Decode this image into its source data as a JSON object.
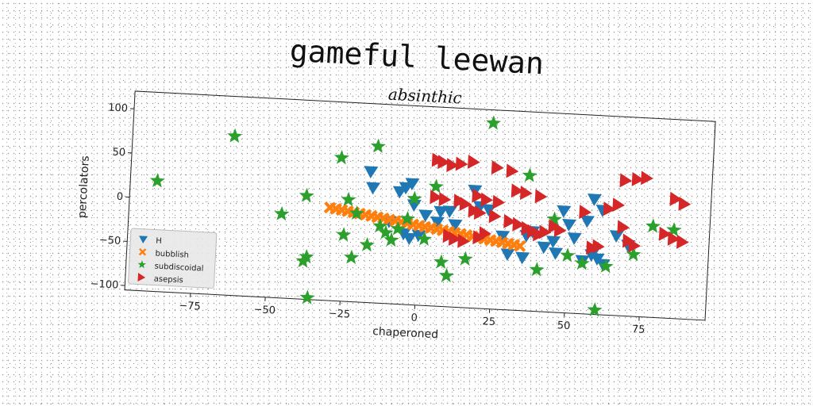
{
  "chart_data": {
    "type": "scatter",
    "suptitle": "gameful leewan",
    "title": "absinthic",
    "xlabel": "chaperoned",
    "ylabel": "percolators",
    "xlim": [
      -97,
      97
    ],
    "ylim": [
      -105,
      120
    ],
    "xticks": [
      -75,
      -50,
      -25,
      0,
      25,
      50,
      75
    ],
    "yticks": [
      -100,
      -50,
      0,
      50,
      100
    ],
    "xtick_labels": [
      "−75",
      "−50",
      "−25",
      "0",
      "25",
      "50",
      "75"
    ],
    "ytick_labels": [
      "−100",
      "−50",
      "0",
      "50",
      "100"
    ],
    "grid": false,
    "legend_position": "lower-left",
    "series": [
      {
        "name": "H",
        "marker": "triangle-down",
        "color": "#1f77b4",
        "points": [
          [
            -17,
            43
          ],
          [
            -16,
            25
          ],
          [
            -7,
            22
          ],
          [
            -5,
            27
          ],
          [
            -3,
            32
          ],
          [
            2,
            -3
          ],
          [
            7,
            2
          ],
          [
            10,
            3
          ],
          [
            -2,
            8
          ],
          [
            -10,
            -12
          ],
          [
            -5,
            -25
          ],
          [
            -3,
            -30
          ],
          [
            0,
            -26
          ],
          [
            6,
            -10
          ],
          [
            12,
            -12
          ],
          [
            18,
            28
          ],
          [
            20,
            10
          ],
          [
            23,
            7
          ],
          [
            28,
            -22
          ],
          [
            30,
            -42
          ],
          [
            35,
            -45
          ],
          [
            36,
            -20
          ],
          [
            38,
            -15
          ],
          [
            42,
            -32
          ],
          [
            45,
            -25
          ],
          [
            46,
            -38
          ],
          [
            48,
            10
          ],
          [
            50,
            -5
          ],
          [
            52,
            -20
          ],
          [
            55,
            -45
          ],
          [
            58,
            -38
          ],
          [
            60,
            -42
          ],
          [
            62,
            -48
          ],
          [
            56,
            0
          ],
          [
            58,
            25
          ],
          [
            61,
            13
          ],
          [
            66,
            -15
          ],
          [
            70,
            -25
          ]
        ]
      },
      {
        "name": "bubblish",
        "marker": "x",
        "color": "#ff7f0e",
        "points": [
          [
            -30,
            0
          ],
          [
            -28,
            -1
          ],
          [
            -26,
            -2
          ],
          [
            -24,
            -3
          ],
          [
            -22,
            -4
          ],
          [
            -20,
            -5
          ],
          [
            -18,
            -6
          ],
          [
            -16,
            -7
          ],
          [
            -14,
            -8
          ],
          [
            -12,
            -9
          ],
          [
            -10,
            -10
          ],
          [
            -8,
            -11
          ],
          [
            -6,
            -12
          ],
          [
            -4,
            -13
          ],
          [
            -2,
            -14
          ],
          [
            0,
            -15
          ],
          [
            2,
            -16
          ],
          [
            4,
            -17
          ],
          [
            6,
            -18
          ],
          [
            8,
            -19
          ],
          [
            10,
            -20
          ],
          [
            12,
            -21
          ],
          [
            14,
            -22
          ],
          [
            16,
            -23
          ],
          [
            18,
            -24
          ],
          [
            20,
            -25
          ],
          [
            22,
            -26
          ],
          [
            24,
            -27
          ],
          [
            26,
            -28
          ],
          [
            28,
            -29
          ],
          [
            30,
            -30
          ],
          [
            32,
            -31
          ],
          [
            34,
            -32
          ]
        ]
      },
      {
        "name": "subdiscoidal",
        "marker": "star",
        "color": "#2ca02c",
        "points": [
          [
            -88,
            20
          ],
          [
            -63,
            75
          ],
          [
            -46,
            -10
          ],
          [
            -38,
            12
          ],
          [
            -37,
            -57
          ],
          [
            -38,
            -62
          ],
          [
            -36,
            -103
          ],
          [
            -27,
            57
          ],
          [
            -24,
            10
          ],
          [
            -21,
            -5
          ],
          [
            -25,
            -30
          ],
          [
            -22,
            -55
          ],
          [
            -17,
            -40
          ],
          [
            -15,
            72
          ],
          [
            -13,
            -18
          ],
          [
            -11,
            -25
          ],
          [
            -9,
            -33
          ],
          [
            -7,
            -20
          ],
          [
            -4,
            -8
          ],
          [
            -2,
            15
          ],
          [
            2,
            -30
          ],
          [
            5,
            30
          ],
          [
            8,
            -55
          ],
          [
            10,
            -70
          ],
          [
            16,
            -50
          ],
          [
            23,
            105
          ],
          [
            36,
            48
          ],
          [
            40,
            -58
          ],
          [
            45,
            0
          ],
          [
            50,
            -40
          ],
          [
            55,
            -48
          ],
          [
            60,
            -100
          ],
          [
            63,
            -50
          ],
          [
            72,
            -35
          ],
          [
            78,
            -2
          ],
          [
            85,
            -5
          ]
        ]
      },
      {
        "name": "asepsis",
        "marker": "triangle-right",
        "color": "#d62728",
        "points": [
          [
            5,
            60
          ],
          [
            7,
            58
          ],
          [
            10,
            55
          ],
          [
            13,
            57
          ],
          [
            17,
            60
          ],
          [
            25,
            55
          ],
          [
            30,
            52
          ],
          [
            5,
            18
          ],
          [
            8,
            16
          ],
          [
            13,
            15
          ],
          [
            15,
            12
          ],
          [
            19,
            22
          ],
          [
            22,
            18
          ],
          [
            26,
            16
          ],
          [
            32,
            30
          ],
          [
            35,
            28
          ],
          [
            40,
            25
          ],
          [
            18,
            5
          ],
          [
            20,
            3
          ],
          [
            25,
            0
          ],
          [
            30,
            -5
          ],
          [
            33,
            -8
          ],
          [
            36,
            -12
          ],
          [
            38,
            -15
          ],
          [
            40,
            -18
          ],
          [
            42,
            -15
          ],
          [
            45,
            -8
          ],
          [
            47,
            -12
          ],
          [
            10,
            -25
          ],
          [
            12,
            -28
          ],
          [
            15,
            -30
          ],
          [
            20,
            -25
          ],
          [
            22,
            -20
          ],
          [
            55,
            10
          ],
          [
            58,
            -30
          ],
          [
            60,
            -28
          ],
          [
            63,
            15
          ],
          [
            66,
            20
          ],
          [
            68,
            -5
          ],
          [
            70,
            -20
          ],
          [
            72,
            -25
          ],
          [
            68,
            48
          ],
          [
            72,
            50
          ],
          [
            75,
            52
          ],
          [
            85,
            30
          ],
          [
            88,
            25
          ],
          [
            82,
            -10
          ],
          [
            85,
            -15
          ],
          [
            88,
            -18
          ]
        ]
      }
    ]
  }
}
